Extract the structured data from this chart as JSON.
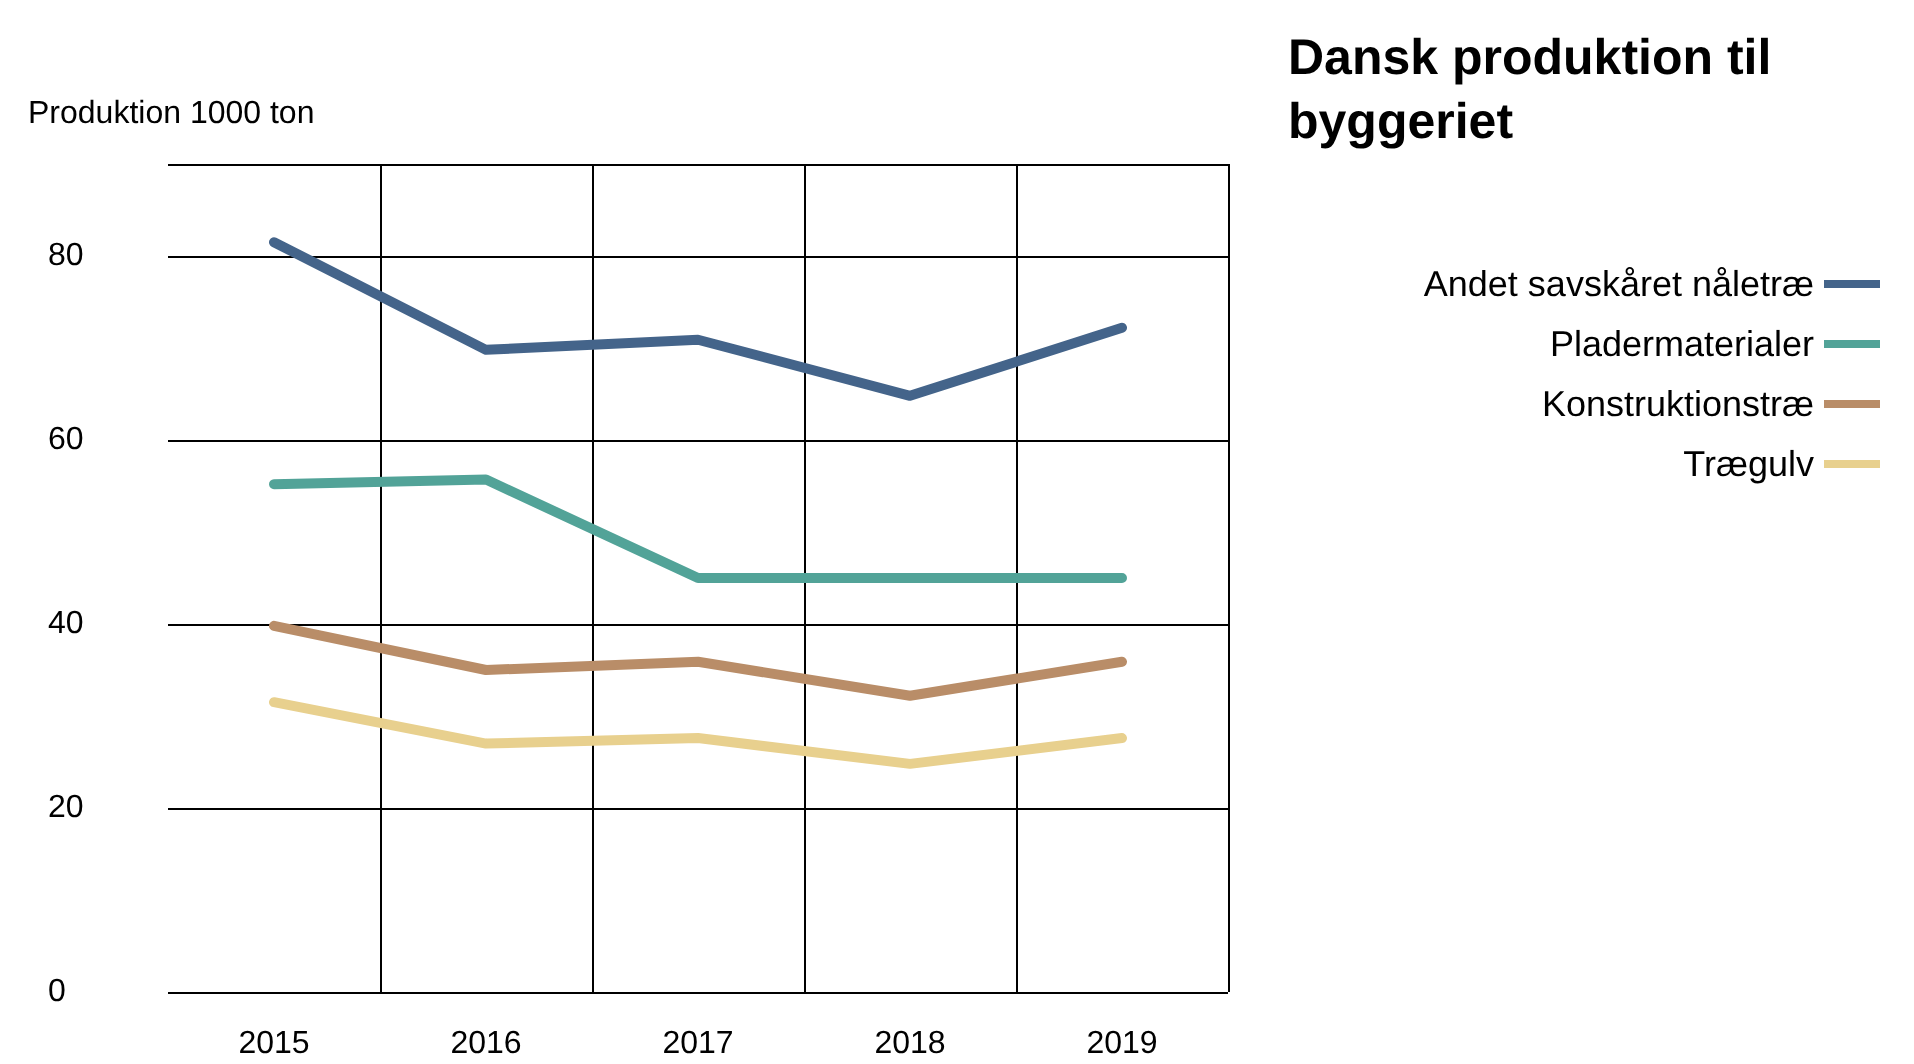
{
  "chart_data": {
    "type": "line",
    "title": "Dansk produktion til byggeriet",
    "ylabel": "Produktion 1000 ton",
    "categories": [
      "2015",
      "2016",
      "2017",
      "2018",
      "2019"
    ],
    "series": [
      {
        "name": "Andet savskåret nåletræ",
        "color": "#44648a",
        "values": [
          81.5,
          69.8,
          70.9,
          64.8,
          72.2
        ]
      },
      {
        "name": "Pladermaterialer",
        "color": "#52a398",
        "values": [
          55.2,
          55.7,
          45,
          45,
          45
        ]
      },
      {
        "name": "Konstruktionstræ",
        "color": "#b98d68",
        "values": [
          39.8,
          35,
          35.9,
          32.2,
          35.9
        ]
      },
      {
        "name": "Trægulv",
        "color": "#e8d08e",
        "values": [
          31.5,
          27,
          27.6,
          24.8,
          27.6
        ]
      }
    ],
    "ylim": [
      0,
      90
    ],
    "yticks": [
      0,
      20,
      40,
      60,
      80
    ],
    "grid": true,
    "legend": "right",
    "marker": "none",
    "line_style": "solid"
  }
}
